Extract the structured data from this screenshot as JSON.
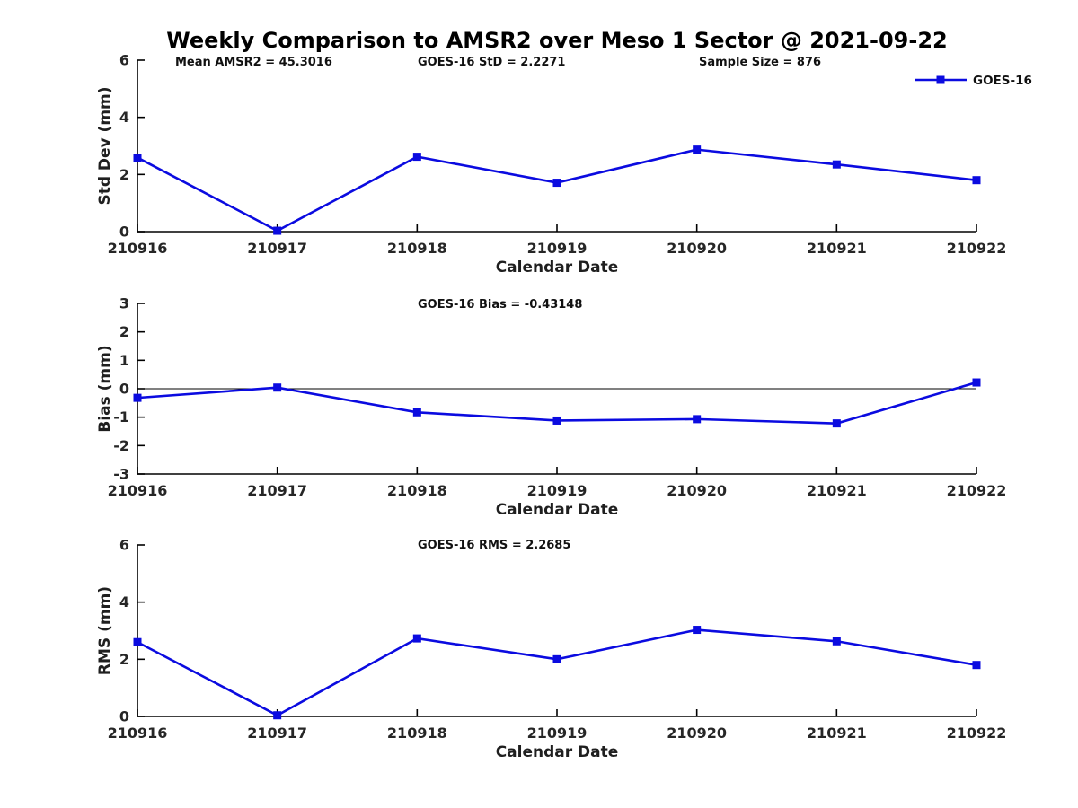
{
  "title": "Weekly Comparison to AMSR2 over Meso 1 Sector @ 2021-09-22",
  "legend": {
    "label": "GOES-16",
    "position": "top-right"
  },
  "colors": {
    "line": "#0b0be0",
    "axis": "#000000",
    "tick_text": "#262626"
  },
  "chart_data": [
    {
      "type": "line",
      "categories": [
        "210916",
        "210917",
        "210918",
        "210919",
        "210920",
        "210921",
        "210922"
      ],
      "series": [
        {
          "name": "GOES-16",
          "values": [
            2.59,
            0.03,
            2.62,
            1.71,
            2.87,
            2.35,
            1.8
          ]
        }
      ],
      "title": "",
      "xlabel": "Calendar Date",
      "ylabel": "Std Dev (mm)",
      "ylim": [
        0,
        6
      ],
      "yticks": [
        0,
        2,
        4,
        6
      ],
      "grid": false,
      "zero_line": false,
      "legend_entries": [
        "GOES-16"
      ],
      "annotations": [
        "Mean AMSR2 = 45.3016",
        "GOES-16 StD = 2.2271",
        "Sample Size = 876"
      ]
    },
    {
      "type": "line",
      "categories": [
        "210916",
        "210917",
        "210918",
        "210919",
        "210920",
        "210921",
        "210922"
      ],
      "series": [
        {
          "name": "GOES-16",
          "values": [
            -0.32,
            0.04,
            -0.83,
            -1.12,
            -1.07,
            -1.22,
            0.22
          ]
        }
      ],
      "title": "",
      "xlabel": "Calendar Date",
      "ylabel": "Bias (mm)",
      "ylim": [
        -3,
        3
      ],
      "yticks": [
        -3,
        -2,
        -1,
        0,
        1,
        2,
        3
      ],
      "grid": false,
      "zero_line": true,
      "legend_entries": [
        "GOES-16"
      ],
      "annotations": [
        "GOES-16 Bias  = -0.43148"
      ]
    },
    {
      "type": "line",
      "categories": [
        "210916",
        "210917",
        "210918",
        "210919",
        "210920",
        "210921",
        "210922"
      ],
      "series": [
        {
          "name": "GOES-16",
          "values": [
            2.6,
            0.04,
            2.73,
            2.0,
            3.03,
            2.63,
            1.8
          ]
        }
      ],
      "title": "",
      "xlabel": "Calendar Date",
      "ylabel": "RMS (mm)",
      "ylim": [
        0,
        6
      ],
      "yticks": [
        0,
        2,
        4,
        6
      ],
      "grid": false,
      "zero_line": false,
      "legend_entries": [
        "GOES-16"
      ],
      "annotations": [
        "GOES-16 RMS = 2.2685"
      ]
    }
  ]
}
